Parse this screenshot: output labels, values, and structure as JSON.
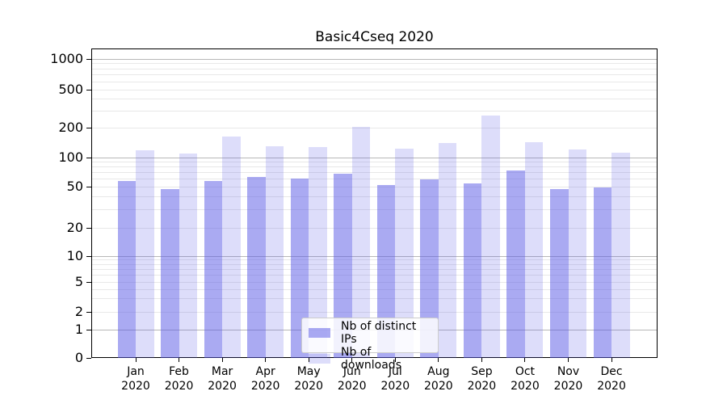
{
  "chart_data": {
    "type": "bar",
    "title": "Basic4Cseq 2020",
    "categories": [
      "Jan",
      "Feb",
      "Mar",
      "Apr",
      "May",
      "Jun",
      "Jul",
      "Aug",
      "Sep",
      "Oct",
      "Nov",
      "Dec"
    ],
    "x_year_label": "2020",
    "series": [
      {
        "name": "Nb of distinct IPs",
        "color": "rgba(85,85,230,0.5)",
        "values": [
          57,
          47,
          57,
          63,
          61,
          68,
          52,
          59,
          54,
          74,
          47,
          49
        ]
      },
      {
        "name": "Nb of downloads",
        "color": "rgba(85,85,230,0.2)",
        "values": [
          118,
          110,
          163,
          130,
          128,
          205,
          124,
          141,
          268,
          143,
          121,
          111
        ]
      }
    ],
    "y_ticks": [
      0,
      1,
      2,
      5,
      10,
      20,
      50,
      100,
      200,
      500,
      1000
    ],
    "scale": "symlog",
    "ylim": [
      0,
      1500
    ],
    "grid": "horizontal major+minor",
    "legend_position": "lower center",
    "colors": {
      "major_grid": "#b8b8b8",
      "minor_grid": "#e8e8e8",
      "spine": "#000000",
      "bar_base": "#5555e6"
    }
  }
}
